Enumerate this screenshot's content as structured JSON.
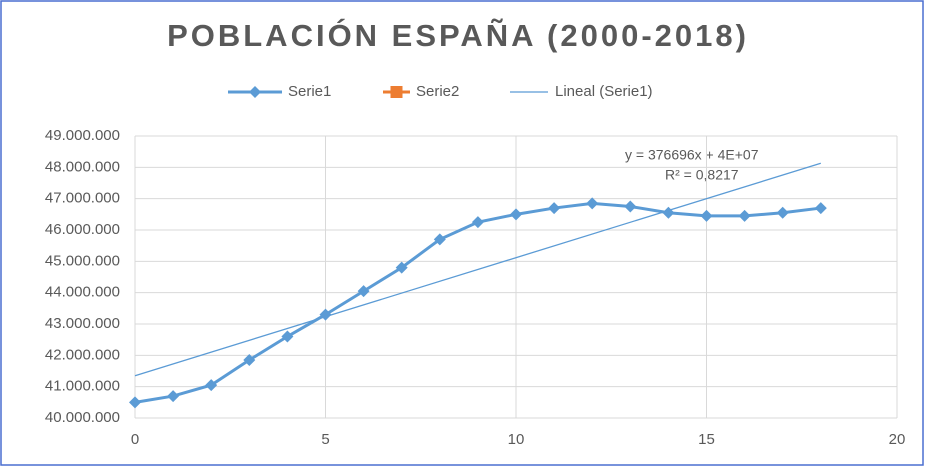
{
  "chart_data": {
    "type": "line",
    "title": "POBLACIÓN ESPAÑA (2000-2018)",
    "series": [
      {
        "name": "Serie1",
        "color": "#5b9bd5",
        "marker": "diamond",
        "width": 3,
        "x": [
          0,
          1,
          2,
          3,
          4,
          5,
          6,
          7,
          8,
          9,
          10,
          11,
          12,
          13,
          14,
          15,
          16,
          17,
          18
        ],
        "values": [
          40500000,
          40700000,
          41050000,
          41850000,
          42600000,
          43300000,
          44050000,
          44800000,
          45700000,
          46250000,
          46500000,
          46700000,
          46850000,
          46750000,
          46550000,
          46450000,
          46450000,
          46550000,
          46700000
        ]
      },
      {
        "name": "Serie2",
        "color": "#ed7d31",
        "marker": "square",
        "width": 3,
        "x": [],
        "values": []
      },
      {
        "name": "Lineal (Serie1)",
        "color": "#5b9bd5",
        "marker": "none",
        "width": 1.3,
        "x": [
          0,
          18
        ],
        "values": [
          41350000,
          48130000
        ]
      }
    ],
    "annotations": [
      "y = 376696x + 4E+07",
      "R² = 0,8217"
    ],
    "xlim": [
      0,
      20
    ],
    "xticks": [
      0,
      5,
      10,
      15,
      20
    ],
    "ylim": [
      40000000,
      49000000
    ],
    "yticks": [
      {
        "value": 40000000,
        "label": "40.000.000"
      },
      {
        "value": 41000000,
        "label": "41.000.000"
      },
      {
        "value": 42000000,
        "label": "42.000.000"
      },
      {
        "value": 43000000,
        "label": "43.000.000"
      },
      {
        "value": 44000000,
        "label": "44.000.000"
      },
      {
        "value": 45000000,
        "label": "45.000.000"
      },
      {
        "value": 46000000,
        "label": "46.000.000"
      },
      {
        "value": 47000000,
        "label": "47.000.000"
      },
      {
        "value": 48000000,
        "label": "48.000.000"
      },
      {
        "value": 49000000,
        "label": "49.000.000"
      }
    ],
    "grid": true,
    "legend": "top"
  }
}
